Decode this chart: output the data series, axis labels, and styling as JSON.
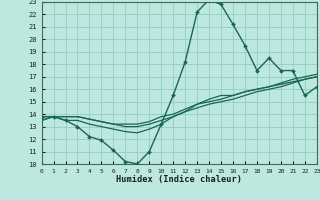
{
  "xlabel": "Humidex (Indice chaleur)",
  "xlim": [
    0,
    23
  ],
  "ylim": [
    10,
    23
  ],
  "xticks": [
    0,
    1,
    2,
    3,
    4,
    5,
    6,
    7,
    8,
    9,
    10,
    11,
    12,
    13,
    14,
    15,
    16,
    17,
    18,
    19,
    20,
    21,
    22,
    23
  ],
  "yticks": [
    10,
    11,
    12,
    13,
    14,
    15,
    16,
    17,
    18,
    19,
    20,
    21,
    22,
    23
  ],
  "bg_color": "#bde8e0",
  "grid_color": "#95ccc4",
  "line_color": "#1a6655",
  "series_main": [
    13.8,
    13.8,
    13.5,
    13.0,
    12.2,
    11.9,
    11.1,
    10.2,
    10.0,
    11.0,
    13.2,
    15.5,
    18.2,
    22.2,
    23.2,
    22.8,
    21.2,
    19.5,
    17.5,
    18.5,
    17.5,
    17.5,
    15.5,
    16.2
  ],
  "series_d1": [
    13.8,
    13.8,
    13.5,
    13.5,
    13.2,
    13.0,
    12.8,
    12.6,
    12.5,
    12.8,
    13.2,
    13.8,
    14.2,
    14.8,
    15.2,
    15.5,
    15.5,
    15.8,
    16.0,
    16.2,
    16.4,
    16.6,
    16.8,
    17.0
  ],
  "series_d2": [
    13.5,
    13.8,
    13.8,
    13.8,
    13.6,
    13.4,
    13.2,
    13.0,
    13.0,
    13.2,
    13.5,
    13.8,
    14.2,
    14.5,
    14.8,
    15.0,
    15.2,
    15.5,
    15.8,
    16.0,
    16.2,
    16.5,
    16.8,
    17.0
  ],
  "series_d3": [
    13.5,
    13.8,
    13.8,
    13.8,
    13.6,
    13.4,
    13.2,
    13.2,
    13.2,
    13.4,
    13.8,
    14.0,
    14.4,
    14.8,
    15.0,
    15.2,
    15.5,
    15.8,
    16.0,
    16.2,
    16.5,
    16.8,
    17.0,
    17.2
  ]
}
